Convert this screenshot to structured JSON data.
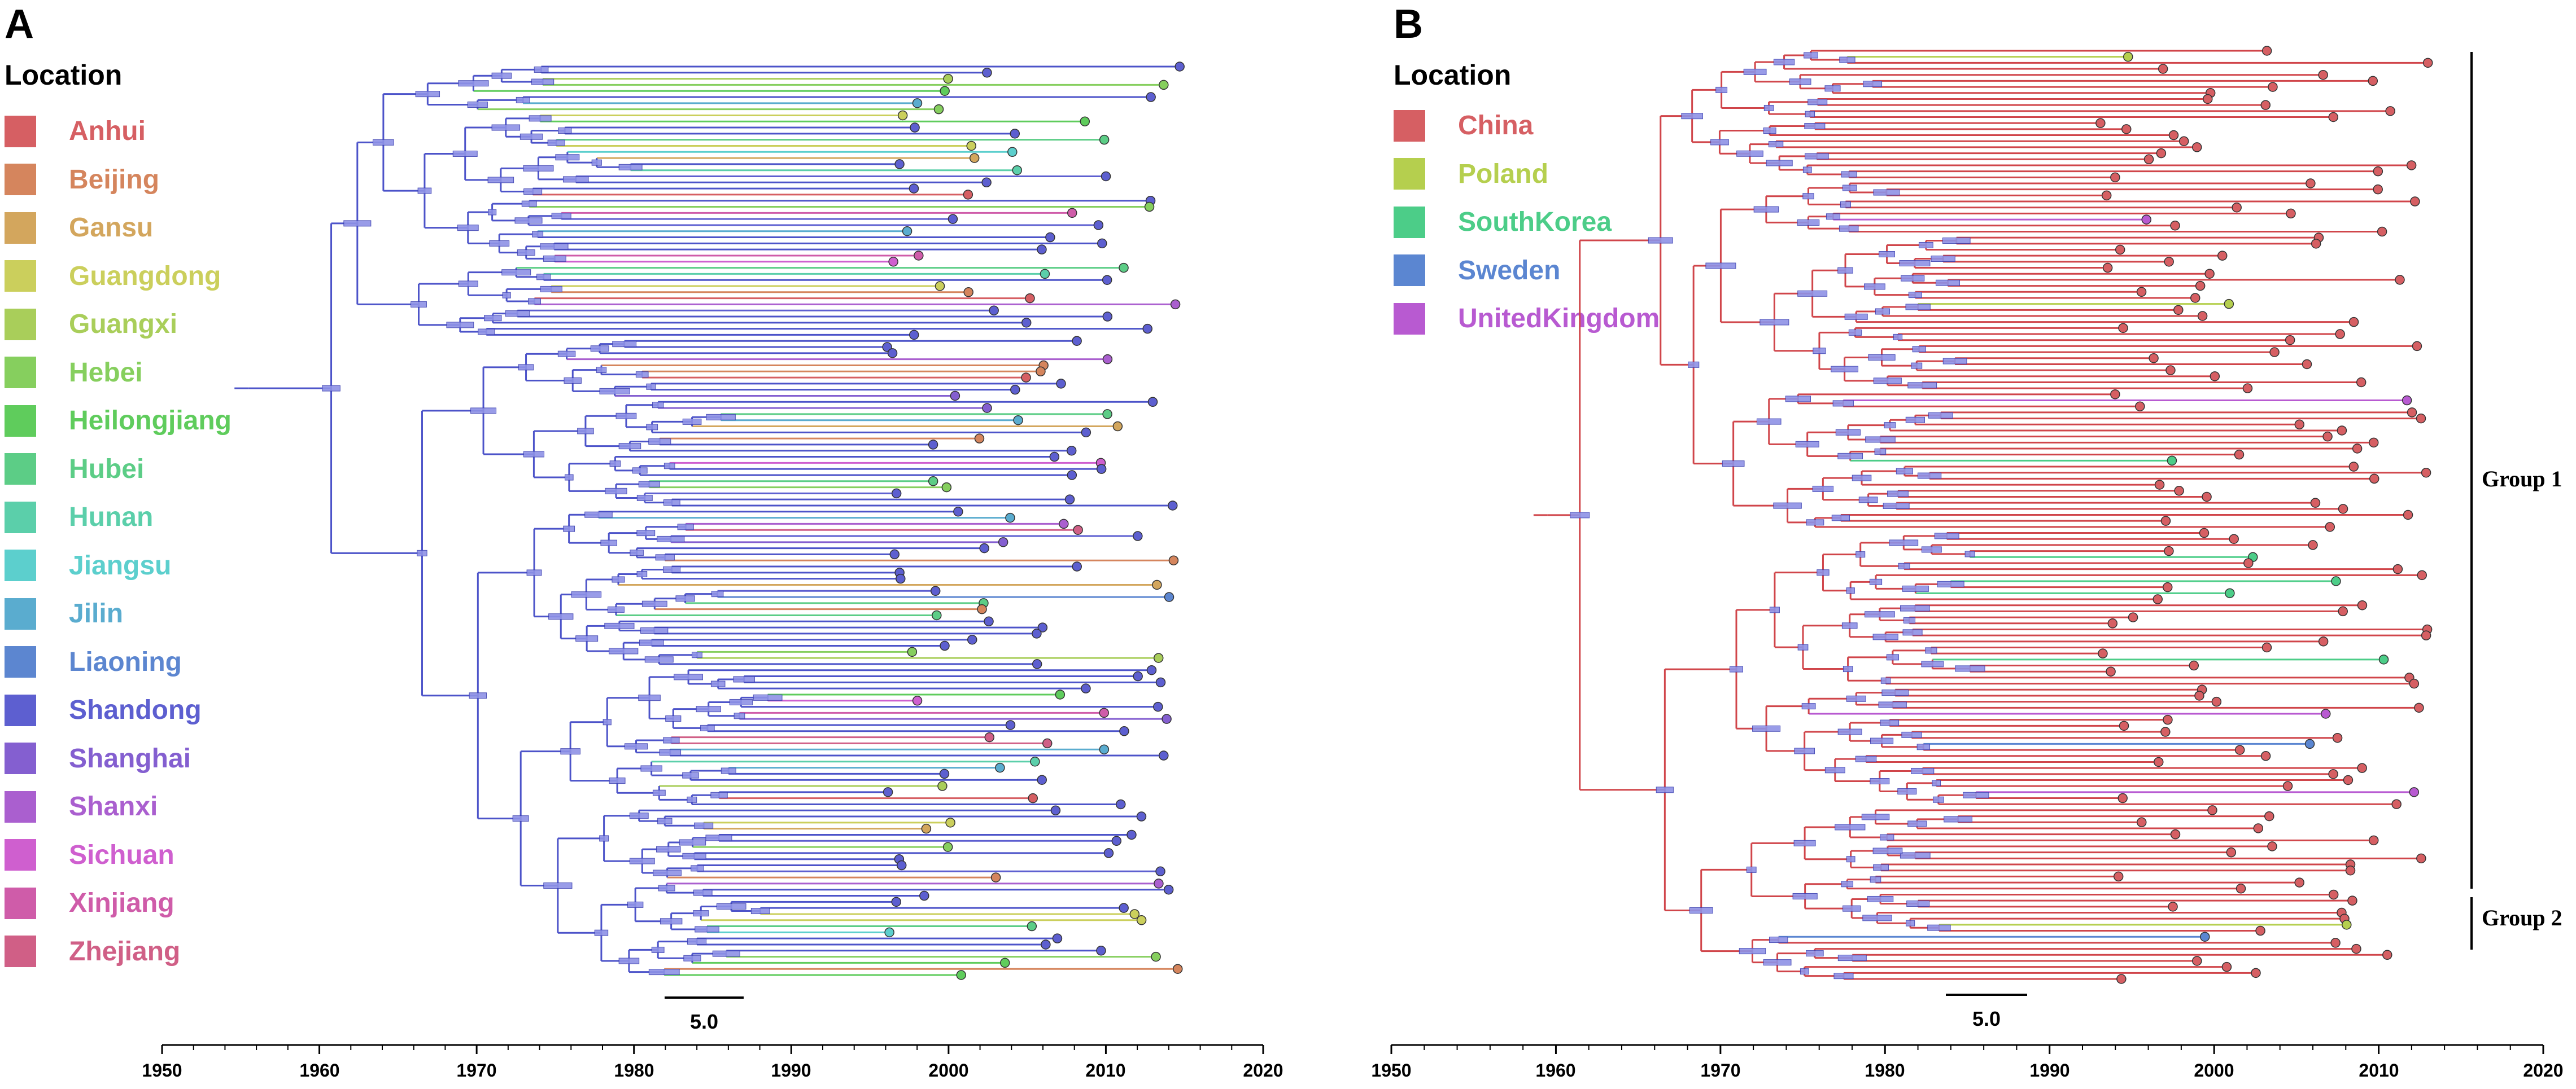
{
  "panels": [
    {
      "letter": "A",
      "legend_title": "Location",
      "legend": [
        {
          "label": "Anhui",
          "color": "#d65f63"
        },
        {
          "label": "Beijing",
          "color": "#d5855d"
        },
        {
          "label": "Gansu",
          "color": "#d3a65d"
        },
        {
          "label": "Guangdong",
          "color": "#cbcf5c"
        },
        {
          "label": "Guangxi",
          "color": "#a9ce5a"
        },
        {
          "label": "Hebei",
          "color": "#86cf5e"
        },
        {
          "label": "Heilongjiang",
          "color": "#5fcc5c"
        },
        {
          "label": "Hubei",
          "color": "#5ccd86"
        },
        {
          "label": "Hunan",
          "color": "#5bcfaa"
        },
        {
          "label": "Jiangsu",
          "color": "#5ccfcd"
        },
        {
          "label": "Jilin",
          "color": "#5aaccf"
        },
        {
          "label": "Liaoning",
          "color": "#5c86d0"
        },
        {
          "label": "Shandong",
          "color": "#5d5fd0"
        },
        {
          "label": "Shanghai",
          "color": "#845fd0"
        },
        {
          "label": "Shanxi",
          "color": "#aa5fcf"
        },
        {
          "label": "Sichuan",
          "color": "#cf5fcf"
        },
        {
          "label": "Xinjiang",
          "color": "#cf5ca9"
        },
        {
          "label": "Zhejiang",
          "color": "#d05f86"
        }
      ],
      "scale_label": "5.0",
      "axis_ticks": [
        "1950",
        "1960",
        "1970",
        "1980",
        "1990",
        "2000",
        "2010",
        "2020"
      ],
      "tree_color": "#4c53c9"
    },
    {
      "letter": "B",
      "legend_title": "Location",
      "legend": [
        {
          "label": "China",
          "color": "#d65f63"
        },
        {
          "label": "Poland",
          "color": "#b5cf4e"
        },
        {
          "label": "SouthKorea",
          "color": "#4ccd88"
        },
        {
          "label": "Sweden",
          "color": "#5b86d1"
        },
        {
          "label": "UnitedKingdom",
          "color": "#b85ad1"
        }
      ],
      "scale_label": "5.0",
      "axis_ticks": [
        "1950",
        "1960",
        "1970",
        "1980",
        "1990",
        "2000",
        "2010",
        "2020"
      ],
      "groups": [
        "Group 1",
        "Group 2"
      ],
      "tree_color": "#d0454a"
    }
  ],
  "chart_data": [
    {
      "type": "time-scaled phylogenetic tree (MCC)",
      "panel": "A",
      "xaxis": {
        "label": "",
        "range": [
          1950,
          2020
        ],
        "ticks": [
          1950,
          1960,
          1970,
          1980,
          1990,
          2000,
          2010,
          2020
        ]
      },
      "scale_bar_years": 5.0,
      "root_year": 1955.5,
      "tip_years_range": [
        1995,
        2016
      ],
      "backbone_node_years": [
        1955.5,
        1961,
        1963.5,
        1966,
        1971,
        1975,
        1980,
        1984.5,
        1991,
        1998.5,
        2006
      ],
      "dominant_location": "Shandong",
      "legend": [
        "Anhui",
        "Beijing",
        "Gansu",
        "Guangdong",
        "Guangxi",
        "Hebei",
        "Heilongjiang",
        "Hubei",
        "Hunan",
        "Jiangsu",
        "Jilin",
        "Liaoning",
        "Shandong",
        "Shanghai",
        "Shanxi",
        "Sichuan",
        "Xinjiang",
        "Zhejiang"
      ]
    },
    {
      "type": "time-scaled phylogenetic tree (MCC)",
      "panel": "B",
      "xaxis": {
        "label": "",
        "range": [
          1950,
          2020
        ],
        "ticks": [
          1950,
          1960,
          1970,
          1980,
          1990,
          2000,
          2010,
          2020
        ]
      },
      "scale_bar_years": 5.0,
      "root_year": 1959.5,
      "tip_years_range": [
        1992,
        2015
      ],
      "backbone_node_years": [
        1959.5,
        1965,
        1967,
        1973,
        1977.5,
        1981.5,
        1985.5,
        1990.5,
        2004.5
      ],
      "dominant_location": "China",
      "groups": [
        {
          "name": "Group 1"
        },
        {
          "name": "Group 2"
        }
      ],
      "legend": [
        "China",
        "Poland",
        "SouthKorea",
        "Sweden",
        "UnitedKingdom"
      ]
    }
  ]
}
